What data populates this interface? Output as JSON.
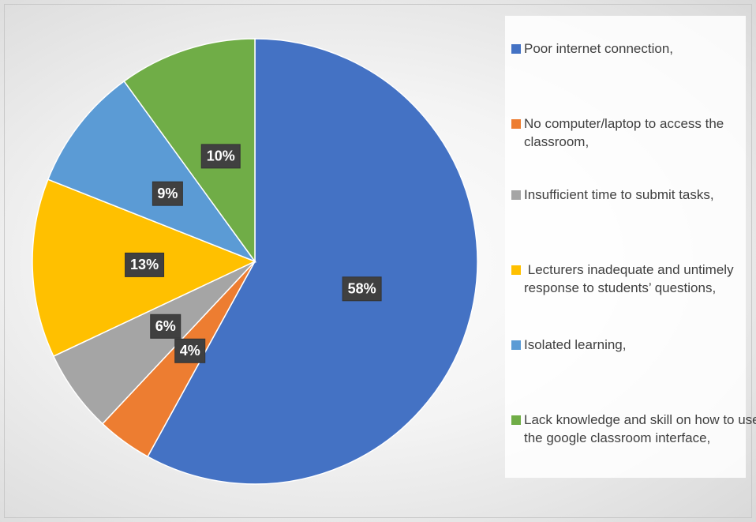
{
  "chart_data": {
    "type": "pie",
    "categories": [
      "Poor internet connection,",
      "No computer/laptop to access the classroom,",
      "Insufficient time to submit tasks,",
      " Lecturers inadequate and untimely response to students’ questions,",
      "Isolated learning,",
      "Lack knowledge and skill on how to use the google classroom interface,"
    ],
    "values": [
      58,
      4,
      6,
      13,
      9,
      10
    ],
    "value_labels": [
      "58%",
      "4%",
      "6%",
      "13%",
      "9%",
      "10%"
    ],
    "colors": [
      "#4472c4",
      "#ed7d31",
      "#a5a5a5",
      "#ffc000",
      "#5b9bd5",
      "#70ad47"
    ],
    "legend": "right"
  }
}
